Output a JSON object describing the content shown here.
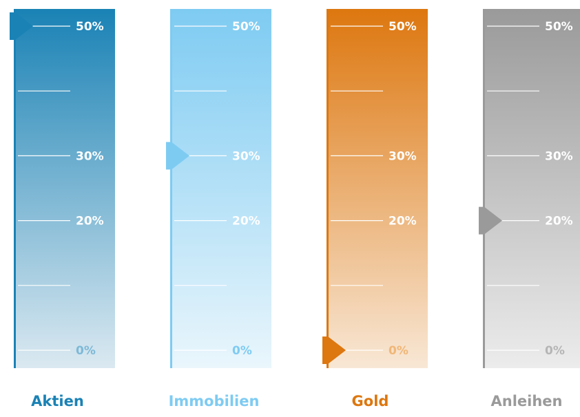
{
  "chart_data": {
    "type": "gauge",
    "ylim": [
      0,
      55
    ],
    "ticks": [
      {
        "value": 0,
        "label": "0%"
      },
      {
        "value": 10,
        "label": ""
      },
      {
        "value": 20,
        "label": "20%"
      },
      {
        "value": 30,
        "label": "30%"
      },
      {
        "value": 40,
        "label": ""
      },
      {
        "value": 50,
        "label": "50%"
      }
    ],
    "gauges": [
      {
        "category": "Aktien",
        "value": 50,
        "color": "#1a82b5",
        "top_color": "#1a82b5",
        "bottom_color": "#dbe9f1",
        "label_color": "#1a82b5",
        "tick_label_bottom_color": "#7db9d7"
      },
      {
        "category": "Immobilien",
        "value": 30,
        "color": "#7ecbf2",
        "top_color": "#7ecbf2",
        "bottom_color": "#eaf6fc",
        "label_color": "#7ecbf2",
        "tick_label_bottom_color": "#7ecbf2"
      },
      {
        "category": "Gold",
        "value": 0,
        "color": "#dd770f",
        "top_color": "#dd770f",
        "bottom_color": "#f8e7d5",
        "label_color": "#dd770f",
        "tick_label_bottom_color": "#f0b777"
      },
      {
        "category": "Anleihen",
        "value": 20,
        "color": "#9a9a9a",
        "top_color": "#9a9a9a",
        "bottom_color": "#ececec",
        "label_color": "#9a9a9a",
        "tick_label_bottom_color": "#b5b5b5"
      }
    ]
  }
}
